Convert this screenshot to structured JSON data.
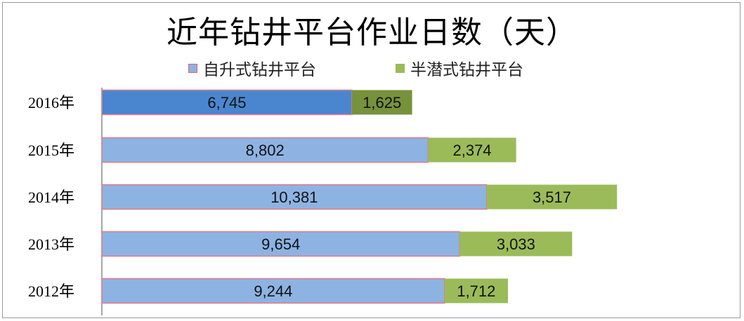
{
  "chart_data": {
    "type": "bar",
    "orientation": "horizontal",
    "stacked": true,
    "title": "近年钻井平台作业日数（天）",
    "categories": [
      "2016年",
      "2015年",
      "2014年",
      "2013年",
      "2012年"
    ],
    "series": [
      {
        "name": "自升式钻井平台",
        "values": [
          6745,
          8802,
          10381,
          9654,
          9244
        ],
        "labels": [
          "6,745",
          "8,802",
          "10,381",
          "9,654",
          "9,244"
        ],
        "color": "#8db3e2",
        "highlight_color": "#4a86d0"
      },
      {
        "name": "半潜式钻井平台",
        "values": [
          1625,
          2374,
          3517,
          3033,
          1712
        ],
        "labels": [
          "1,625",
          "2,374",
          "3,517",
          "3,033",
          "1,712"
        ],
        "color": "#9bbb59",
        "highlight_color": "#76923c"
      }
    ],
    "highlighted_category": "2016年",
    "legend_position": "top",
    "grid": false,
    "xlim": [
      0,
      16000
    ]
  }
}
